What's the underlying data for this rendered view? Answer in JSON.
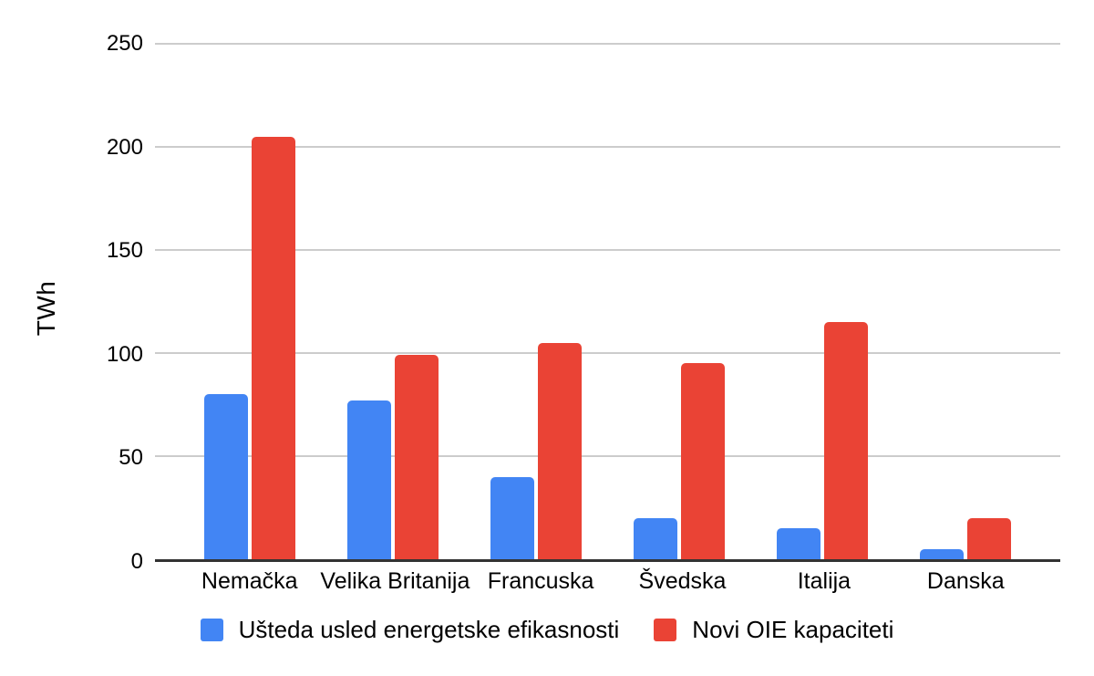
{
  "chart_data": {
    "type": "bar",
    "title": "",
    "xlabel": "",
    "ylabel": "TWh",
    "ylim": [
      0,
      250
    ],
    "y_ticks": [
      0,
      50,
      100,
      150,
      200,
      250
    ],
    "grid": true,
    "legend_position": "bottom",
    "categories": [
      "Nemačka",
      "Velika Britanija",
      "Francuska",
      "Švedska",
      "Italija",
      "Danska"
    ],
    "series": [
      {
        "name": "Ušteda usled energetske efikasnosti",
        "color": "#4285F4",
        "values": [
          80,
          77,
          40,
          20,
          15,
          5
        ]
      },
      {
        "name": "Novi OIE kapaciteti",
        "color": "#EA4335",
        "values": [
          205,
          99,
          105,
          95,
          115,
          20
        ]
      }
    ],
    "colors": {
      "gridline": "#cccccc",
      "axis_line": "#333333",
      "text": "#000000",
      "background": "#ffffff"
    }
  }
}
